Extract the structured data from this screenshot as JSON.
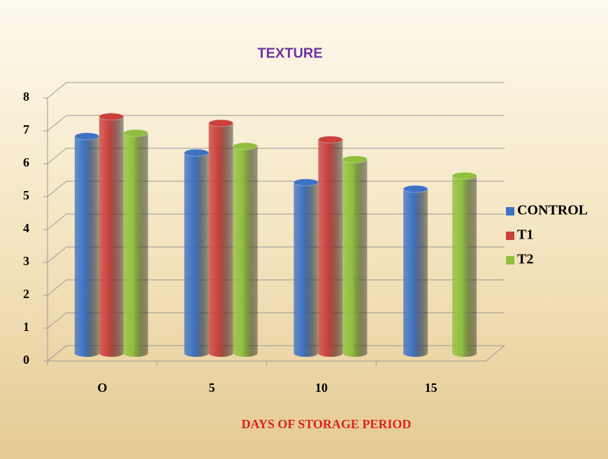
{
  "chart_data": {
    "type": "bar",
    "title": "TEXTURE",
    "x_label": "DAYS OF STORAGE PERIOD",
    "categories": [
      "O",
      "5",
      "10",
      "15"
    ],
    "series": [
      {
        "name": "CONTROL",
        "color": "#3d72c4",
        "values": [
          6.6,
          6.1,
          5.2,
          5.0
        ]
      },
      {
        "name": "T1",
        "color": "#c9403d",
        "values": [
          7.2,
          7.0,
          6.5,
          null
        ]
      },
      {
        "name": "T2",
        "color": "#8fbf3c",
        "values": [
          6.7,
          6.3,
          5.9,
          5.4
        ]
      }
    ],
    "ylim": [
      0,
      8
    ],
    "yticks": [
      0,
      1,
      2,
      3,
      4,
      5,
      6,
      7,
      8
    ],
    "grid": true,
    "legend": "right"
  }
}
